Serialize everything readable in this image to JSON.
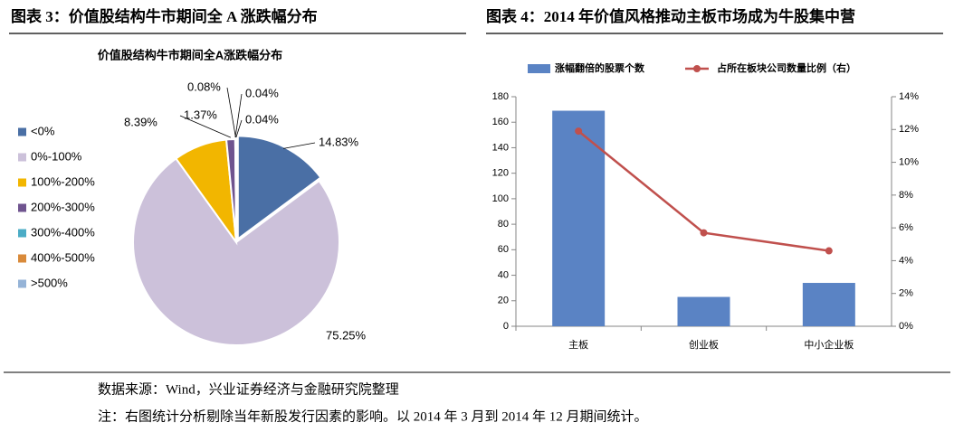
{
  "headers": [
    "图表 3：价值股结构牛市期间全 A 涨跌幅分布",
    "图表 4：2014 年价值风格推动主板市场成为牛股集中营"
  ],
  "chart_data": [
    {
      "type": "pie",
      "title": "价值股结构牛市期间全A涨跌幅分布",
      "categories": [
        "<0%",
        "0%-100%",
        "100%-200%",
        "200%-300%",
        "300%-400%",
        "400%-500%",
        ">500%"
      ],
      "values": [
        14.83,
        75.25,
        8.39,
        1.37,
        0.04,
        0.08,
        0.04
      ],
      "value_labels": [
        "14.83%",
        "75.25%",
        "8.39%",
        "1.37%",
        "0.04%",
        "0.08%",
        "0.04%"
      ],
      "colors": [
        "#4a6fa5",
        "#ccc1da",
        "#f2b600",
        "#6f548f",
        "#4bacc6",
        "#d98a3a",
        "#95b3d7"
      ],
      "legend": "left"
    },
    {
      "type": "bar",
      "categories": [
        "主板",
        "创业板",
        "中小企业板"
      ],
      "series": [
        {
          "name": "涨幅翻倍的股票个数",
          "color": "#5a83c4",
          "values": [
            169,
            23,
            34
          ]
        },
        {
          "name": "占所在板块公司数量比例（右）",
          "color": "#c0504d",
          "type": "line",
          "axis": "y2",
          "values": [
            11.9,
            5.7,
            4.6
          ]
        }
      ],
      "ylim": [
        0,
        180
      ],
      "yticks": [
        0,
        20,
        40,
        60,
        80,
        100,
        120,
        140,
        160,
        180
      ],
      "y2lim": [
        0,
        14
      ],
      "y2ticks": [
        {
          "value": 0,
          "label": "0%"
        },
        {
          "value": 2,
          "label": "2%"
        },
        {
          "value": 4,
          "label": "4%"
        },
        {
          "value": 6,
          "label": "6%"
        },
        {
          "value": 8,
          "label": "8%"
        },
        {
          "value": 10,
          "label": "10%"
        },
        {
          "value": 12,
          "label": "12%"
        },
        {
          "value": 14,
          "label": "14%"
        }
      ],
      "legend": "top"
    }
  ],
  "source": "数据来源：Wind，兴业证券经济与金融研究院整理",
  "note": "注：右图统计分析剔除当年新股发行因素的影响。以 2014 年 3 月到 2014 年 12 月期间统计。"
}
